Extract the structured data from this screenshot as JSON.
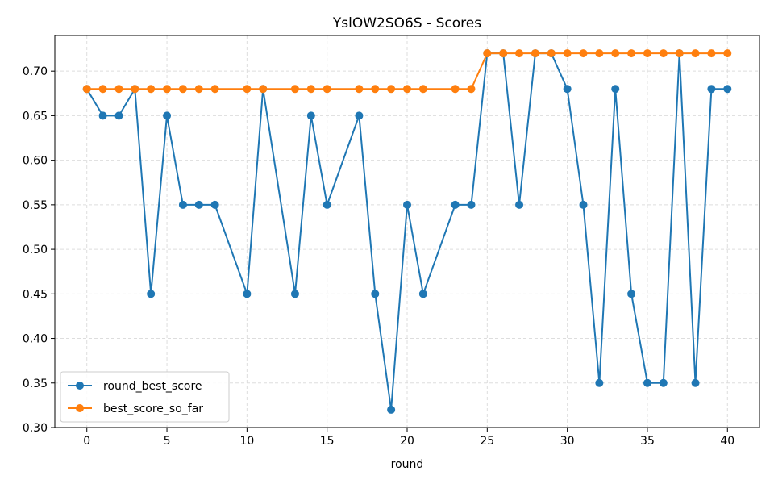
{
  "chart_data": {
    "type": "line",
    "title": "YslOW2SO6S - Scores",
    "xlabel": "round",
    "ylabel": "",
    "xlim": [
      -2,
      42
    ],
    "ylim": [
      0.3,
      0.74
    ],
    "xticks": [
      "0",
      "5",
      "10",
      "15",
      "20",
      "25",
      "30",
      "35",
      "40"
    ],
    "yticks": [
      "0.30",
      "0.35",
      "0.40",
      "0.45",
      "0.50",
      "0.55",
      "0.60",
      "0.65",
      "0.70"
    ],
    "grid": true,
    "legend_position": "lower-left",
    "x": [
      0,
      1,
      2,
      3,
      4,
      5,
      6,
      7,
      8,
      10,
      11,
      13,
      14,
      15,
      17,
      18,
      19,
      20,
      21,
      23,
      24,
      25,
      26,
      27,
      28,
      29,
      30,
      31,
      32,
      33,
      34,
      35,
      36,
      37,
      38,
      39,
      40
    ],
    "series": [
      {
        "name": "round_best_score",
        "color": "#1f77b4",
        "values": [
          0.68,
          0.65,
          0.65,
          0.68,
          0.45,
          0.65,
          0.55,
          0.55,
          0.55,
          0.45,
          0.68,
          0.45,
          0.65,
          0.55,
          0.65,
          0.45,
          0.32,
          0.55,
          0.45,
          0.55,
          0.55,
          0.72,
          0.72,
          0.55,
          0.72,
          0.72,
          0.68,
          0.55,
          0.35,
          0.68,
          0.45,
          0.35,
          0.35,
          0.72,
          0.35,
          0.68,
          0.68
        ]
      },
      {
        "name": "best_score_so_far",
        "color": "#ff7f0e",
        "values": [
          0.68,
          0.68,
          0.68,
          0.68,
          0.68,
          0.68,
          0.68,
          0.68,
          0.68,
          0.68,
          0.68,
          0.68,
          0.68,
          0.68,
          0.68,
          0.68,
          0.68,
          0.68,
          0.68,
          0.68,
          0.68,
          0.72,
          0.72,
          0.72,
          0.72,
          0.72,
          0.72,
          0.72,
          0.72,
          0.72,
          0.72,
          0.72,
          0.72,
          0.72,
          0.72,
          0.72,
          0.72
        ]
      }
    ]
  }
}
